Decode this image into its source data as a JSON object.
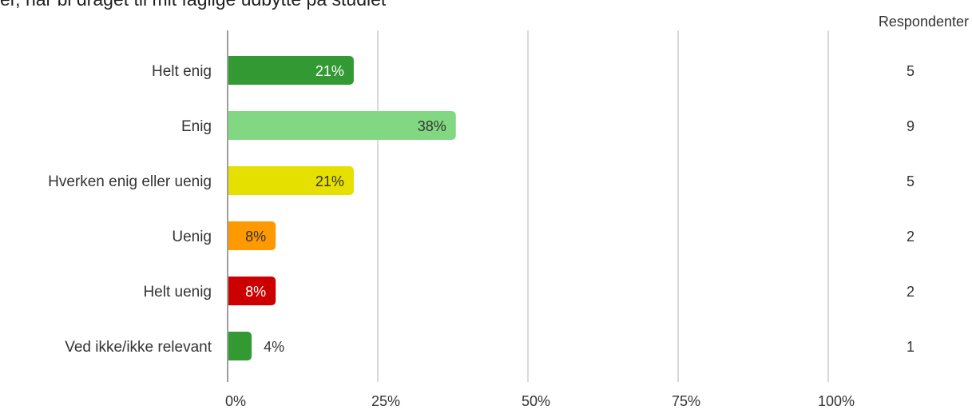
{
  "chart_data": {
    "type": "bar",
    "orientation": "horizontal",
    "title": "er, når bl draget til mit faglige udbytte på studiet",
    "categories": [
      "Helt enig",
      "Enig",
      "Hverken enig eller uenig",
      "Uenig",
      "Helt uenig",
      "Ved ikke/ikke relevant"
    ],
    "values": [
      21,
      38,
      21,
      8,
      8,
      4
    ],
    "value_labels": [
      "21%",
      "38%",
      "21%",
      "8%",
      "8%",
      "4%"
    ],
    "colors": [
      "#339933",
      "#82d882",
      "#e6e000",
      "#ff9900",
      "#cc0000",
      "#339933"
    ],
    "label_colors": [
      "#ffffff",
      "#333333",
      "#333333",
      "#333333",
      "#ffffff",
      "#333333"
    ],
    "xlim": [
      0,
      100
    ],
    "xticks": [
      0,
      25,
      50,
      75,
      100
    ],
    "xtick_labels": [
      "0%",
      "25%",
      "50%",
      "75%",
      "100%"
    ],
    "grid": true,
    "respondents_header": "Respondenter",
    "respondents": [
      "5",
      "9",
      "5",
      "2",
      "2",
      "1"
    ]
  }
}
